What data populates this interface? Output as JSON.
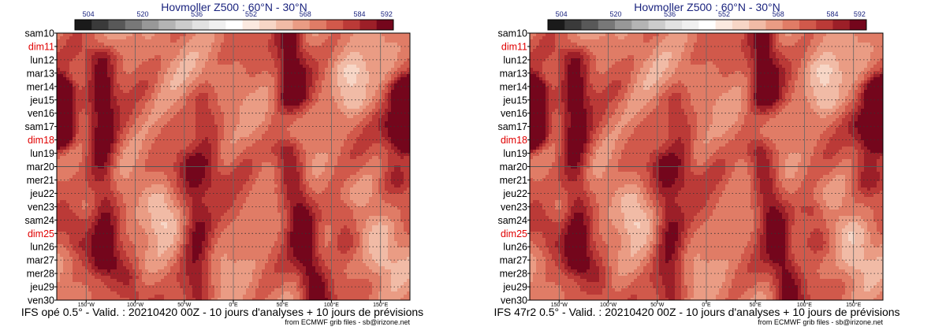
{
  "panels": [
    {
      "chart_data": {
        "type": "heatmap",
        "title": "Hovmoller Z500 : 60°N - 30°N",
        "colorbar": {
          "ticks": [
            504,
            520,
            536,
            552,
            568,
            584,
            592
          ],
          "min": 500,
          "max": 594,
          "step": 4,
          "colors": [
            "#1a1a1a",
            "#3a3a3a",
            "#585858",
            "#787878",
            "#989898",
            "#b4b4b4",
            "#cccccc",
            "#e2e2e2",
            "#f0f0f0",
            "#ffffff",
            "#fbe9e0",
            "#f7d6c6",
            "#f1bba6",
            "#ea9c84",
            "#e07c66",
            "#d1594b",
            "#bb3a37",
            "#9c1f28",
            "#74061c"
          ]
        },
        "x_ticks": [
          "150°W",
          "100°W",
          "50°W",
          "0°E",
          "50°E",
          "100°E",
          "150°E"
        ],
        "x_tick_values": [
          -150,
          -100,
          -50,
          0,
          50,
          100,
          150
        ],
        "xlim": [
          -180,
          180
        ],
        "y_labels": [
          "sam10",
          "dim11",
          "lun12",
          "mar13",
          "mer14",
          "jeu15",
          "ven16",
          "sam17",
          "dim18",
          "lun19",
          "mar20",
          "mer21",
          "jeu22",
          "ven23",
          "sam24",
          "dim25",
          "lun26",
          "mar27",
          "mer28",
          "jeu29",
          "ven30"
        ],
        "sunday_labels": [
          "dim11",
          "dim18",
          "dim25"
        ],
        "analysis_divider": "mar20",
        "ridges": [
          {
            "lon": -135,
            "d0": 2,
            "d1": 17,
            "drift": 4,
            "val": 574
          },
          {
            "lon": -40,
            "d0": 10,
            "d1": 19.5,
            "drift": 4,
            "val": 572
          },
          {
            "lon": 58,
            "d0": 0,
            "d1": 4.5,
            "drift": 2,
            "val": 577
          },
          {
            "lon": 55,
            "d0": 9,
            "d1": 20,
            "drift": 30,
            "val": 575
          },
          {
            "lon": -178,
            "d0": 4.5,
            "d1": 7.5,
            "drift": 0,
            "val": 582
          },
          {
            "lon": 178,
            "d0": 4.5,
            "d1": 7.5,
            "drift": 0,
            "val": 582
          },
          {
            "lon": -30,
            "d0": 5,
            "d1": 11,
            "drift": 10,
            "val": 566
          },
          {
            "lon": 112,
            "d0": 13.5,
            "d1": 15.5,
            "drift": 0,
            "val": 570
          },
          {
            "lon": 160,
            "d0": 7,
            "d1": 11,
            "drift": 5,
            "val": 566
          },
          {
            "lon": -160,
            "d0": 14.5,
            "d1": 15.5,
            "drift": 0,
            "val": 568
          },
          {
            "lon": -105,
            "d0": 18.5,
            "d1": 19.5,
            "drift": 0,
            "val": 568
          },
          {
            "lon": 5,
            "d0": 7,
            "d1": 10,
            "drift": 6,
            "val": 562
          },
          {
            "lon": -95,
            "d0": 1,
            "d1": 4,
            "drift": 5,
            "val": 560
          }
        ],
        "troughs": [
          {
            "lon": 120,
            "d0": 3,
            "d1": 5,
            "drift": 0,
            "val": 549
          },
          {
            "lon": -75,
            "d0": 12.5,
            "d1": 14,
            "drift": 0,
            "val": 550
          },
          {
            "lon": 150,
            "d0": 15,
            "d1": 17,
            "drift": 0,
            "val": 550
          }
        ]
      },
      "footer": "IFS opé 0.5° - Valid. : 20210420 00Z - 10 jours d'analyses + 10 jours de prévisions",
      "credit": "from ECMWF grib files - sb@irizone.net"
    },
    {
      "chart_data": {
        "type": "heatmap",
        "title": "Hovmoller Z500 : 60°N - 30°N",
        "colorbar": {
          "ticks": [
            504,
            520,
            536,
            552,
            568,
            584,
            592
          ],
          "min": 500,
          "max": 594,
          "step": 4,
          "colors": [
            "#1a1a1a",
            "#3a3a3a",
            "#585858",
            "#787878",
            "#989898",
            "#b4b4b4",
            "#cccccc",
            "#e2e2e2",
            "#f0f0f0",
            "#ffffff",
            "#fbe9e0",
            "#f7d6c6",
            "#f1bba6",
            "#ea9c84",
            "#e07c66",
            "#d1594b",
            "#bb3a37",
            "#9c1f28",
            "#74061c"
          ]
        },
        "x_ticks": [
          "150°W",
          "100°W",
          "50°W",
          "0°E",
          "50°E",
          "100°E",
          "150°E"
        ],
        "x_tick_values": [
          -150,
          -100,
          -50,
          0,
          50,
          100,
          150
        ],
        "xlim": [
          -180,
          180
        ],
        "y_labels": [
          "sam10",
          "dim11",
          "lun12",
          "mar13",
          "mer14",
          "jeu15",
          "ven16",
          "sam17",
          "dim18",
          "lun19",
          "mar20",
          "mer21",
          "jeu22",
          "ven23",
          "sam24",
          "dim25",
          "lun26",
          "mar27",
          "mer28",
          "jeu29",
          "ven30"
        ],
        "sunday_labels": [
          "dim11",
          "dim18",
          "dim25"
        ],
        "analysis_divider": "mar20",
        "ridges": [
          {
            "lon": -135,
            "d0": 2,
            "d1": 17,
            "drift": 4,
            "val": 574
          },
          {
            "lon": -40,
            "d0": 10,
            "d1": 19.5,
            "drift": 4,
            "val": 572
          },
          {
            "lon": 58,
            "d0": 0,
            "d1": 4.5,
            "drift": 2,
            "val": 577
          },
          {
            "lon": 55,
            "d0": 9,
            "d1": 20,
            "drift": 30,
            "val": 574
          },
          {
            "lon": -178,
            "d0": 4.5,
            "d1": 7.5,
            "drift": 0,
            "val": 582
          },
          {
            "lon": 178,
            "d0": 4.5,
            "d1": 7.5,
            "drift": 0,
            "val": 582
          },
          {
            "lon": -30,
            "d0": 5,
            "d1": 11,
            "drift": 10,
            "val": 566
          },
          {
            "lon": 110,
            "d0": 13.5,
            "d1": 15.5,
            "drift": 0,
            "val": 570
          },
          {
            "lon": 160,
            "d0": 7,
            "d1": 11,
            "drift": 5,
            "val": 568
          },
          {
            "lon": -160,
            "d0": 14.5,
            "d1": 15.5,
            "drift": 0,
            "val": 567
          },
          {
            "lon": -108,
            "d0": 18.5,
            "d1": 19.5,
            "drift": 0,
            "val": 566
          },
          {
            "lon": 5,
            "d0": 7,
            "d1": 10,
            "drift": 6,
            "val": 562
          },
          {
            "lon": -95,
            "d0": 1,
            "d1": 4,
            "drift": 5,
            "val": 560
          }
        ],
        "troughs": [
          {
            "lon": 120,
            "d0": 3,
            "d1": 5,
            "drift": 0,
            "val": 549
          },
          {
            "lon": -75,
            "d0": 12.5,
            "d1": 14,
            "drift": 0,
            "val": 550
          },
          {
            "lon": 150,
            "d0": 15,
            "d1": 17,
            "drift": 0,
            "val": 549
          }
        ]
      },
      "footer": "IFS 47r2 0.5° - Valid. : 20210420 00Z - 10 jours d'analyses + 10 jours de prévisions",
      "credit": "from ECMWF grib files - sb@irizone.net"
    }
  ]
}
